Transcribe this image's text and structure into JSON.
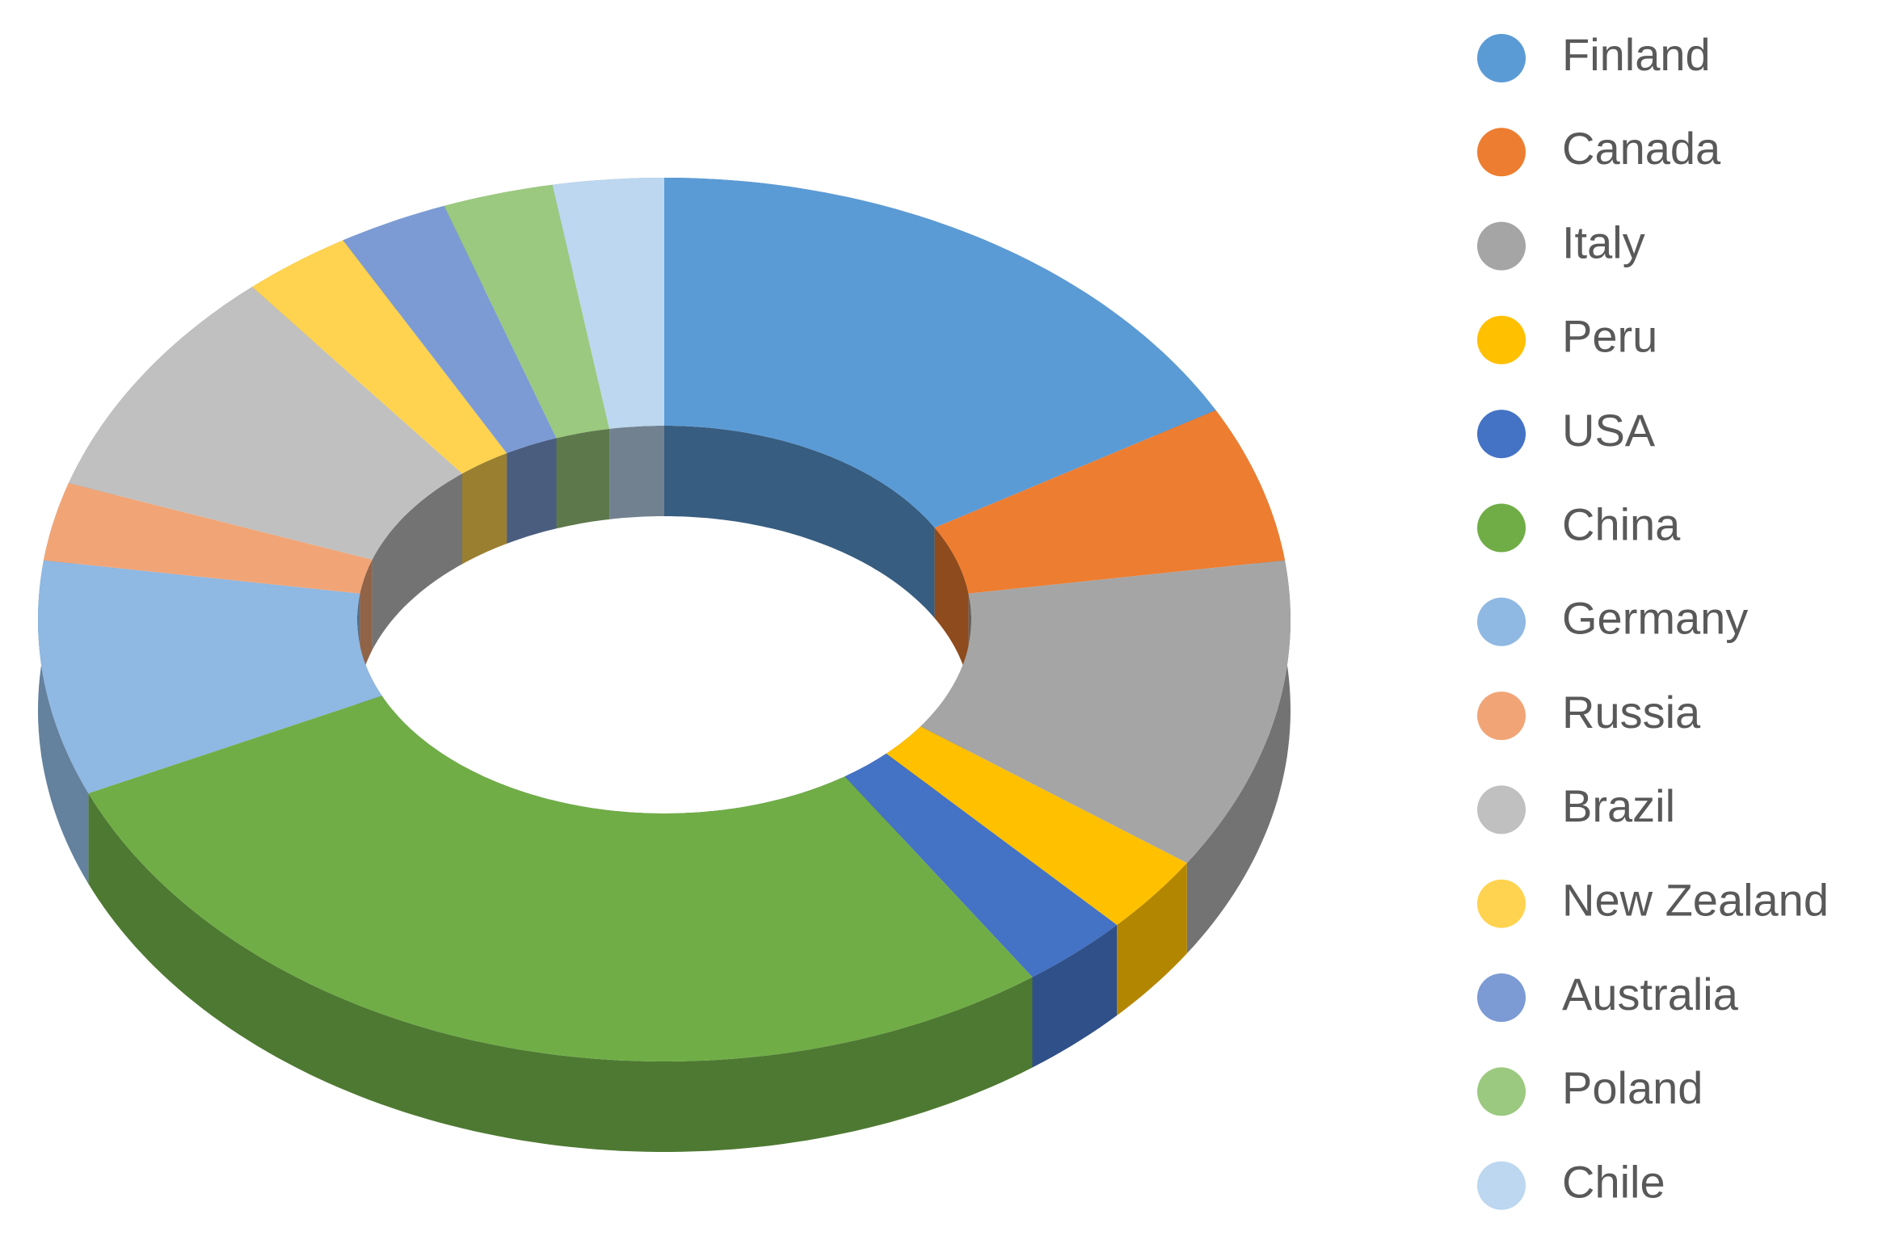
{
  "chart_data": {
    "type": "donut3d",
    "categories": [
      "Finland",
      "Canada",
      "Italy",
      "Peru",
      "USA",
      "China",
      "Germany",
      "Russia",
      "Brazil",
      "New Zealand",
      "Australia",
      "Poland",
      "Chile"
    ],
    "values": [
      6,
      2,
      4,
      1,
      1,
      10,
      3,
      1,
      3,
      1,
      1,
      1,
      1
    ],
    "colors": [
      "#5b9bd5",
      "#ed7d31",
      "#a5a5a5",
      "#ffc000",
      "#4472c4",
      "#70ad47",
      "#8fb8e2",
      "#f1a577",
      "#c0c0c0",
      "#ffd34f",
      "#7c9bd4",
      "#9bc97f",
      "#bcd7ef"
    ],
    "legend": "right"
  }
}
